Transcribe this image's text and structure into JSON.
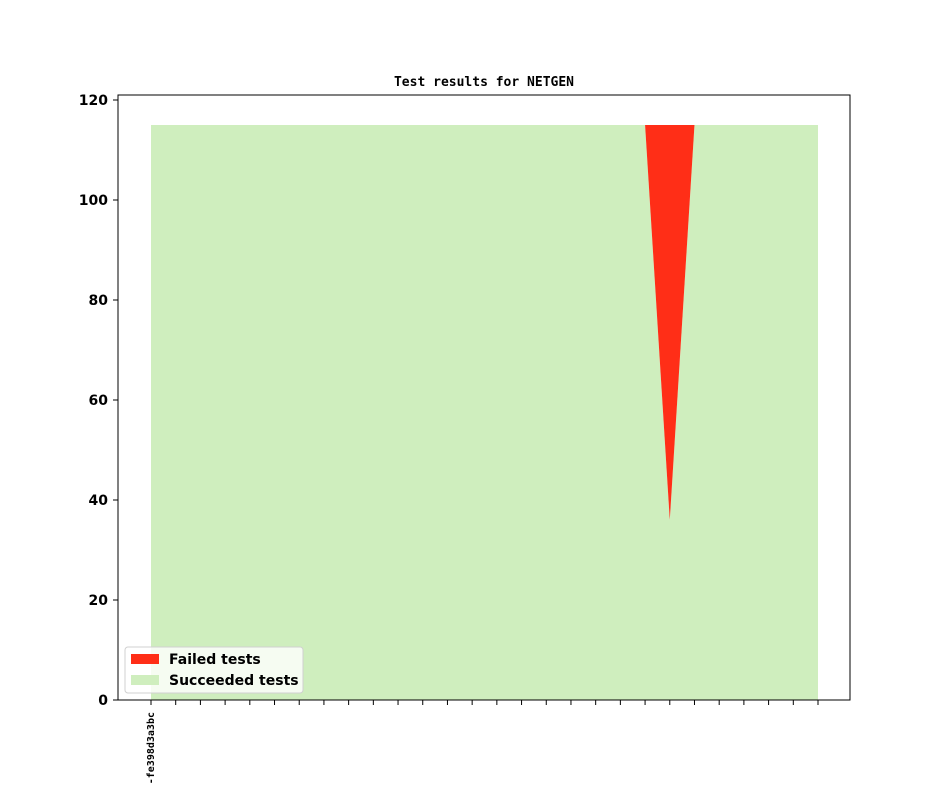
{
  "chart_data": {
    "type": "area",
    "stacked": true,
    "title": "Test results for NETGEN",
    "xlabel": "",
    "ylabel": "",
    "ylim": [
      0,
      121
    ],
    "yticks": [
      0,
      20,
      40,
      60,
      80,
      100,
      120
    ],
    "x_tick_count": 28,
    "x_tick_labels": [
      "-fe398d3a3bc"
    ],
    "grid": false,
    "legend_position": "lower-left",
    "series": [
      {
        "name": "Failed tests",
        "color": "#ff2e17",
        "values": [
          0,
          0,
          0,
          0,
          0,
          0,
          0,
          0,
          0,
          0,
          0,
          0,
          0,
          0,
          0,
          0,
          0,
          0,
          0,
          0,
          0,
          79,
          0,
          0,
          0,
          0,
          0,
          0
        ]
      },
      {
        "name": "Succeeded tests",
        "color": "#cfeebe",
        "values": [
          115,
          115,
          115,
          115,
          115,
          115,
          115,
          115,
          115,
          115,
          115,
          115,
          115,
          115,
          115,
          115,
          115,
          115,
          115,
          115,
          115,
          36,
          115,
          115,
          115,
          115,
          115,
          115
        ]
      }
    ]
  }
}
